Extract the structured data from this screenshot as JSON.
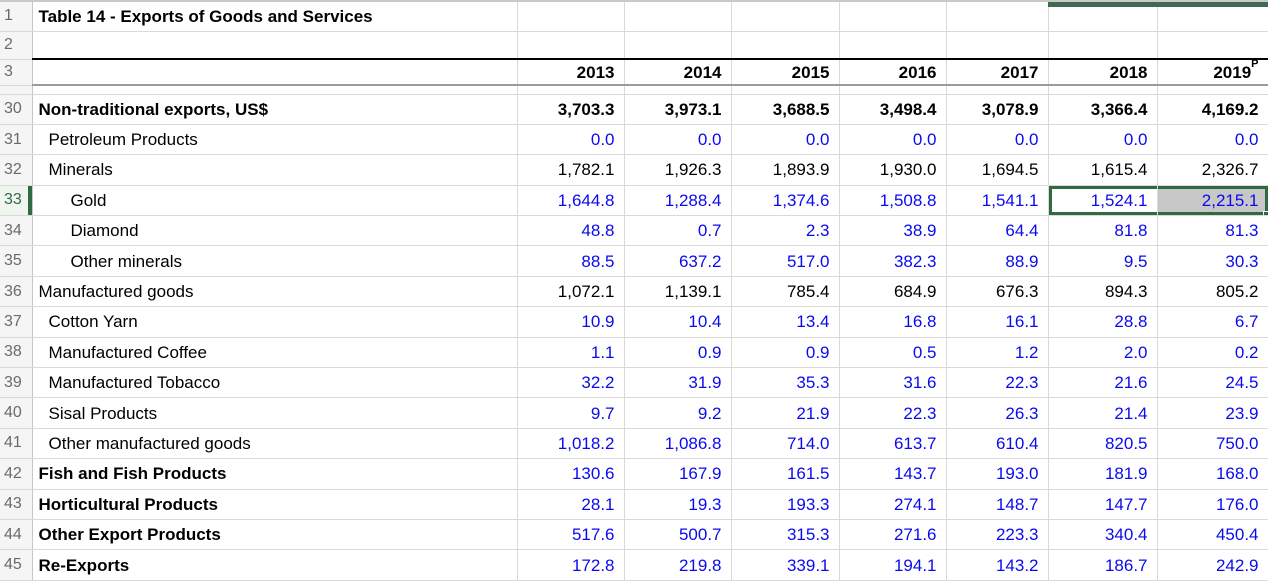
{
  "title_row": {
    "number": "1",
    "title": "Table 14 - Exports of Goods and Services"
  },
  "empty_row": {
    "number": "2"
  },
  "header_row": {
    "number": "3",
    "years": [
      "2013",
      "2014",
      "2015",
      "2016",
      "2017",
      "2018",
      "2019"
    ],
    "superscript": "P",
    "superscript_year_index": 6
  },
  "rows": [
    {
      "num": "30",
      "label": "Non-traditional exports, US$",
      "indent": 0,
      "label_bold": true,
      "values_bold": true,
      "value_color": "black",
      "values": [
        "3,703.3",
        "3,973.1",
        "3,688.5",
        "3,498.4",
        "3,078.9",
        "3,366.4",
        "4,169.2"
      ]
    },
    {
      "num": "31",
      "label": "Petroleum Products",
      "indent": 1,
      "label_bold": false,
      "values_bold": false,
      "value_color": "blue",
      "values": [
        "0.0",
        "0.0",
        "0.0",
        "0.0",
        "0.0",
        "0.0",
        "0.0"
      ]
    },
    {
      "num": "32",
      "label": "Minerals",
      "indent": 1,
      "label_bold": false,
      "values_bold": false,
      "value_color": "black",
      "values": [
        "1,782.1",
        "1,926.3",
        "1,893.9",
        "1,930.0",
        "1,694.5",
        "1,615.4",
        "2,326.7"
      ]
    },
    {
      "num": "33",
      "label": "Gold",
      "indent": 2,
      "label_bold": false,
      "values_bold": false,
      "value_color": "blue",
      "values": [
        "1,644.8",
        "1,288.4",
        "1,374.6",
        "1,508.8",
        "1,541.1",
        "1,524.1",
        "2,215.1"
      ],
      "header_selected": true,
      "selected_cols": [
        5,
        6
      ],
      "active_col": 6
    },
    {
      "num": "34",
      "label": "Diamond",
      "indent": 2,
      "label_bold": false,
      "values_bold": false,
      "value_color": "blue",
      "values": [
        "48.8",
        "0.7",
        "2.3",
        "38.9",
        "64.4",
        "81.8",
        "81.3"
      ]
    },
    {
      "num": "35",
      "label": "Other minerals",
      "indent": 2,
      "label_bold": false,
      "values_bold": false,
      "value_color": "blue",
      "values": [
        "88.5",
        "637.2",
        "517.0",
        "382.3",
        "88.9",
        "9.5",
        "30.3"
      ]
    },
    {
      "num": "36",
      "label": "Manufactured goods",
      "indent": 0,
      "label_bold": false,
      "values_bold": false,
      "value_color": "black",
      "values": [
        "1,072.1",
        "1,139.1",
        "785.4",
        "684.9",
        "676.3",
        "894.3",
        "805.2"
      ]
    },
    {
      "num": "37",
      "label": "Cotton Yarn",
      "indent": 1,
      "label_bold": false,
      "values_bold": false,
      "value_color": "blue",
      "values": [
        "10.9",
        "10.4",
        "13.4",
        "16.8",
        "16.1",
        "28.8",
        "6.7"
      ]
    },
    {
      "num": "38",
      "label": "Manufactured Coffee",
      "indent": 1,
      "label_bold": false,
      "values_bold": false,
      "value_color": "blue",
      "values": [
        "1.1",
        "0.9",
        "0.9",
        "0.5",
        "1.2",
        "2.0",
        "0.2"
      ]
    },
    {
      "num": "39",
      "label": "Manufactured Tobacco",
      "indent": 1,
      "label_bold": false,
      "values_bold": false,
      "value_color": "blue",
      "values": [
        "32.2",
        "31.9",
        "35.3",
        "31.6",
        "22.3",
        "21.6",
        "24.5"
      ]
    },
    {
      "num": "40",
      "label": "Sisal Products",
      "indent": 1,
      "label_bold": false,
      "values_bold": false,
      "value_color": "blue",
      "values": [
        "9.7",
        "9.2",
        "21.9",
        "22.3",
        "26.3",
        "21.4",
        "23.9"
      ]
    },
    {
      "num": "41",
      "label": "Other manufactured goods",
      "indent": 1,
      "label_bold": false,
      "values_bold": false,
      "value_color": "blue",
      "values": [
        "1,018.2",
        "1,086.8",
        "714.0",
        "613.7",
        "610.4",
        "820.5",
        "750.0"
      ]
    },
    {
      "num": "42",
      "label": "Fish and Fish Products",
      "indent": 0,
      "label_bold": true,
      "values_bold": false,
      "value_color": "blue",
      "values": [
        "130.6",
        "167.9",
        "161.5",
        "143.7",
        "193.0",
        "181.9",
        "168.0"
      ]
    },
    {
      "num": "43",
      "label": "Horticultural Products",
      "indent": 0,
      "label_bold": true,
      "values_bold": false,
      "value_color": "blue",
      "values": [
        "28.1",
        "19.3",
        "193.3",
        "274.1",
        "148.7",
        "147.7",
        "176.0"
      ]
    },
    {
      "num": "44",
      "label": "Other Export Products",
      "indent": 0,
      "label_bold": true,
      "values_bold": false,
      "value_color": "blue",
      "values": [
        "517.6",
        "500.7",
        "315.3",
        "271.6",
        "223.3",
        "340.4",
        "450.4"
      ]
    },
    {
      "num": "45",
      "label": "Re-Exports",
      "indent": 0,
      "label_bold": true,
      "values_bold": false,
      "value_color": "blue",
      "values": [
        "172.8",
        "219.8",
        "339.1",
        "194.1",
        "143.2",
        "186.7",
        "242.9"
      ]
    }
  ],
  "selection": {
    "row": "33",
    "columns": [
      "2018",
      "2019"
    ],
    "active_cell_value": "2,215.1"
  },
  "colors": {
    "blue": "#0a0af0",
    "green": "#2e6b45",
    "grid": "#d9d9d9",
    "rowhead-bg": "#f5f5f5",
    "rowhead-text": "#6a6a6a",
    "active-fill": "#c7c7c7",
    "topbar": "#3e6b4d",
    "thick": "#000000",
    "header-underline": "#9b9b9b"
  }
}
